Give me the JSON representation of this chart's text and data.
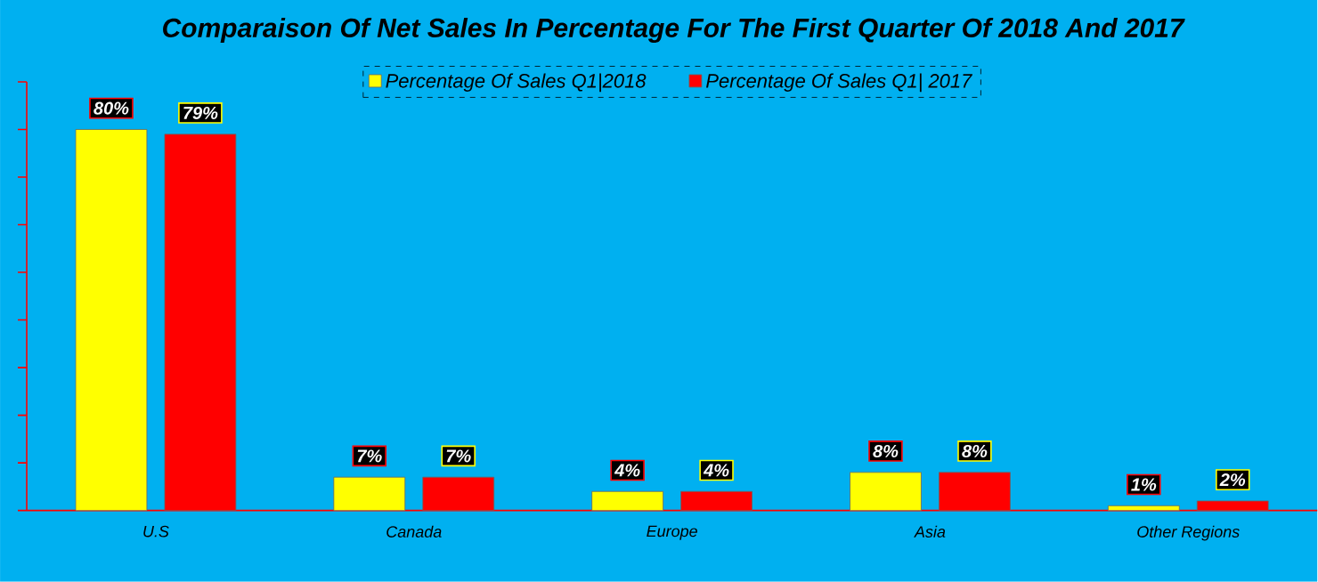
{
  "chart_data": {
    "type": "bar",
    "title": "Comparaison Of Net Sales In Percentage For The First Quarter Of 2018 And 2017",
    "categories": [
      "U.S",
      "Canada",
      "Europe",
      "Asia",
      "Other Regions"
    ],
    "series": [
      {
        "name": "Percentage Of Sales Q1|2018",
        "color": "#ffff00",
        "values": [
          80,
          7,
          4,
          8,
          1
        ],
        "value_labels": [
          "80%",
          "7%",
          "4%",
          "8%",
          "1%"
        ]
      },
      {
        "name": "Percentage Of Sales Q1| 2017",
        "color": "#ff0000",
        "values": [
          79,
          7,
          4,
          8,
          2
        ],
        "value_labels": [
          "79%",
          "7%",
          "4%",
          "8%",
          "2%"
        ]
      }
    ],
    "ylim": [
      0,
      90
    ],
    "yticks": [
      {
        "value": 0,
        "label": null
      },
      {
        "value": 10,
        "label": null
      },
      {
        "value": 20,
        "label": null
      },
      {
        "value": 30,
        "label": null
      },
      {
        "value": 40,
        "label": null
      },
      {
        "value": 50,
        "label": null
      },
      {
        "value": 60,
        "label": null
      },
      {
        "value": 70,
        "label": null
      },
      {
        "value": 80,
        "label": null
      },
      {
        "value": 90,
        "label": null
      }
    ],
    "tick_labels": "x",
    "legend": "top",
    "grid": false
  }
}
